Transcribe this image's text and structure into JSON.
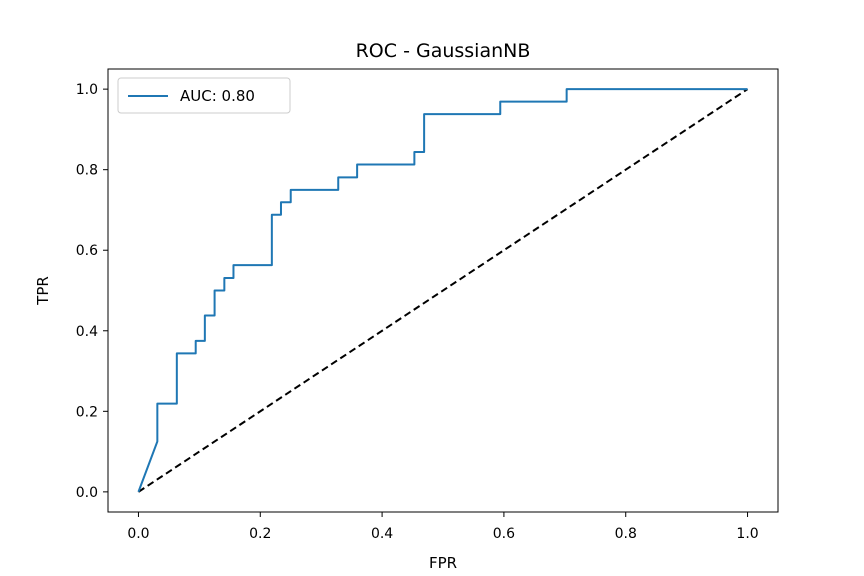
{
  "chart_data": {
    "type": "line",
    "title": "ROC - GaussianNB",
    "xlabel": "FPR",
    "ylabel": "TPR",
    "xlim": [
      -0.05,
      1.05
    ],
    "ylim": [
      -0.05,
      1.05
    ],
    "x_ticks": [
      "0.0",
      "0.2",
      "0.4",
      "0.6",
      "0.8",
      "1.0"
    ],
    "y_ticks": [
      "0.0",
      "0.2",
      "0.4",
      "0.6",
      "0.8",
      "1.0"
    ],
    "grid": false,
    "legend_position": "top-left",
    "series": [
      {
        "name": "AUC: 0.80",
        "color": "#1f77b4",
        "style": "solid",
        "x": [
          0,
          0.031,
          0.031,
          0.063,
          0.063,
          0.094,
          0.094,
          0.109,
          0.109,
          0.125,
          0.125,
          0.141,
          0.141,
          0.156,
          0.156,
          0.219,
          0.219,
          0.234,
          0.234,
          0.25,
          0.25,
          0.328,
          0.328,
          0.359,
          0.359,
          0.453,
          0.453,
          0.469,
          0.469,
          0.594,
          0.594,
          0.703,
          0.703,
          1.0
        ],
        "y": [
          0,
          0.125,
          0.219,
          0.219,
          0.344,
          0.344,
          0.375,
          0.375,
          0.438,
          0.438,
          0.5,
          0.5,
          0.531,
          0.531,
          0.563,
          0.563,
          0.688,
          0.688,
          0.719,
          0.719,
          0.75,
          0.75,
          0.781,
          0.781,
          0.813,
          0.813,
          0.844,
          0.844,
          0.938,
          0.938,
          0.969,
          0.969,
          1.0,
          1.0
        ]
      },
      {
        "color": "#000000",
        "style": "dashed",
        "x": [
          0,
          1
        ],
        "y": [
          0,
          1
        ]
      }
    ]
  }
}
